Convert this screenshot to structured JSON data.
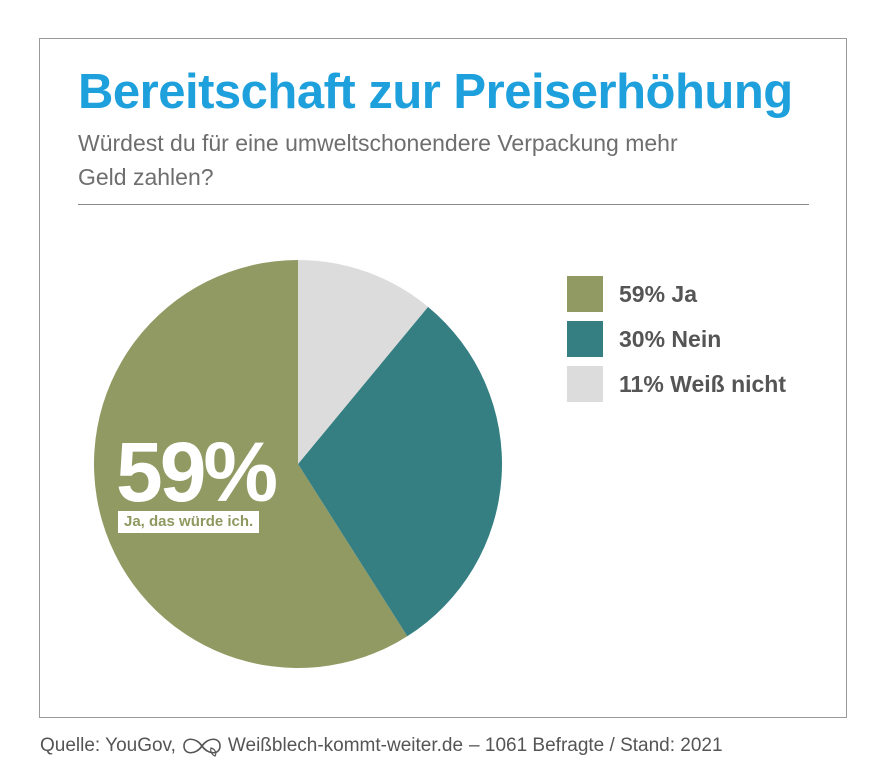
{
  "chart_data": {
    "type": "pie",
    "title": "Bereitschaft zur Preiserhöhung",
    "subtitle": "Würdest du für eine umweltschonendere Verpackung mehr Geld zahlen?",
    "slices": [
      {
        "label": "Ja",
        "value": 59,
        "color": "#919a63",
        "legend": "59% Ja"
      },
      {
        "label": "Nein",
        "value": 30,
        "color": "#357f82",
        "legend": "30% Nein"
      },
      {
        "label": "Weiß nicht",
        "value": 11,
        "color": "#dcdcdc",
        "legend": "11% Weiß nicht"
      }
    ],
    "highlight": {
      "value_text": "59%",
      "caption": "Ja, das würde ich."
    },
    "start_angle_deg": 0,
    "direction": "counterclockwise",
    "legend_position": "right"
  },
  "footer": {
    "source_prefix": "Quelle: YouGov,",
    "source_brand": "Weißblech-kommt-weiter.de",
    "source_suffix": "– 1061 Befragte / Stand: 2021",
    "brand_icon": "infinity-leaf-icon"
  }
}
